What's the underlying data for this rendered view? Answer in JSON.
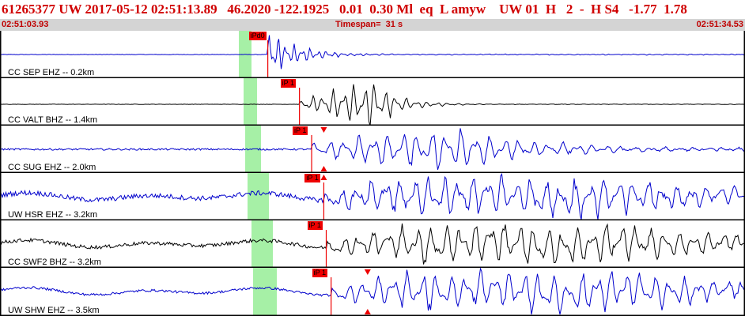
{
  "header": {
    "title": "61265377 UW 2017-05-12 02:51:13.89   46.2020 -122.1925   0.01  0.30 Ml  eq  L amyw    UW 01  H   2  -  H S4   -1.77  1.78",
    "start_time": "02:51:03.93",
    "timespan": "Timespan=  31 s",
    "end_time": "02:51:34.53"
  },
  "colors": {
    "trace_blue": "#0000cc",
    "trace_black": "#000000",
    "pick_red": "#ee0000",
    "window_green": "#a6f0a6",
    "title_red": "#d00000",
    "subrow_gray": "#d4d4d4"
  },
  "panels": [
    {
      "label": "CC SEP EHZ -- 0.2km",
      "pick": "iPd0",
      "color": "blue",
      "arrival_s": 11.0,
      "amplitude": 28,
      "noise": 0.6,
      "style": "sep",
      "markers": []
    },
    {
      "label": "CC VALT BHZ -- 1.4km",
      "pick": "iP 1",
      "color": "black",
      "arrival_s": 12.3,
      "amplitude": 26,
      "noise": 0.4,
      "style": "valt",
      "markers": []
    },
    {
      "label": "CC SUG EHZ -- 2.0km",
      "pick": "iP 1",
      "color": "blue",
      "arrival_s": 12.8,
      "amplitude": 26,
      "noise": 2.2,
      "style": "sug",
      "markers": [
        {
          "t": 13.3,
          "dir": "down",
          "pos": "top"
        },
        {
          "t": 13.3,
          "dir": "up",
          "pos": "bottom"
        }
      ]
    },
    {
      "label": "UW HSR EHZ -- 3.2km",
      "pick": "iP 1",
      "color": "blue",
      "arrival_s": 13.3,
      "amplitude": 26,
      "noise": 6.0,
      "style": "hsr",
      "markers": [
        {
          "t": 13.3,
          "dir": "up",
          "pos": "top"
        }
      ]
    },
    {
      "label": "CC SWF2 BHZ -- 3.2km",
      "pick": "iP 1",
      "color": "black",
      "arrival_s": 13.4,
      "amplitude": 26,
      "noise": 4.5,
      "style": "swf",
      "markers": []
    },
    {
      "label": "UW SHW EHZ -- 3.5km",
      "pick": "iP 1",
      "color": "blue",
      "arrival_s": 13.6,
      "amplitude": 26,
      "noise": 3.0,
      "style": "shw",
      "markers": [
        {
          "t": 15.1,
          "dir": "down",
          "pos": "top"
        },
        {
          "t": 15.1,
          "dir": "up",
          "pos": "bottom"
        }
      ]
    }
  ]
}
